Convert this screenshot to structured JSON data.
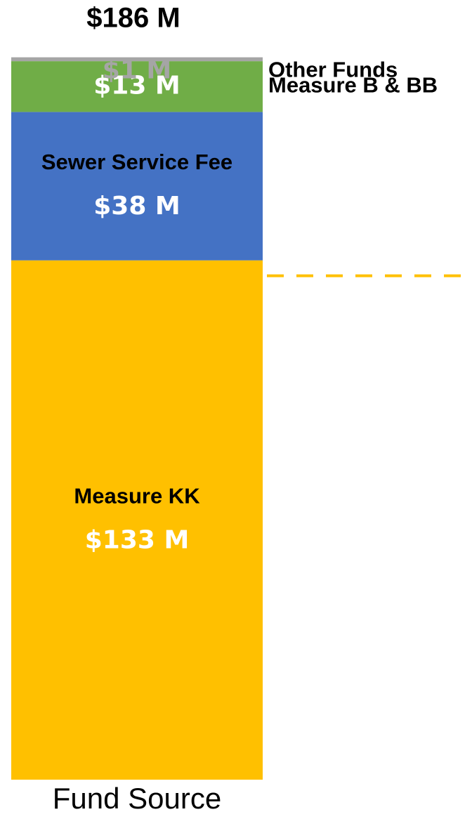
{
  "chart_data": {
    "type": "stacked_bar",
    "title": "$186 M",
    "categories": [
      "Fund Source"
    ],
    "series": [
      {
        "name": "Measure KK",
        "color": "#FFC000",
        "values": [
          133
        ],
        "value_labels": [
          "$133 M"
        ]
      },
      {
        "name": "Sewer Service Fee",
        "color": "#4472C4",
        "values": [
          38
        ],
        "value_labels": [
          "$38 M"
        ]
      },
      {
        "name": "Measure B & BB",
        "color": "#70AD47",
        "values": [
          13
        ],
        "value_labels": [
          "$13 M"
        ]
      },
      {
        "name": "Other Funds",
        "color": "#A5A5A5",
        "values": [
          1
        ],
        "value_labels": [
          "$1 M"
        ]
      }
    ],
    "ylim": [
      0,
      186
    ]
  }
}
